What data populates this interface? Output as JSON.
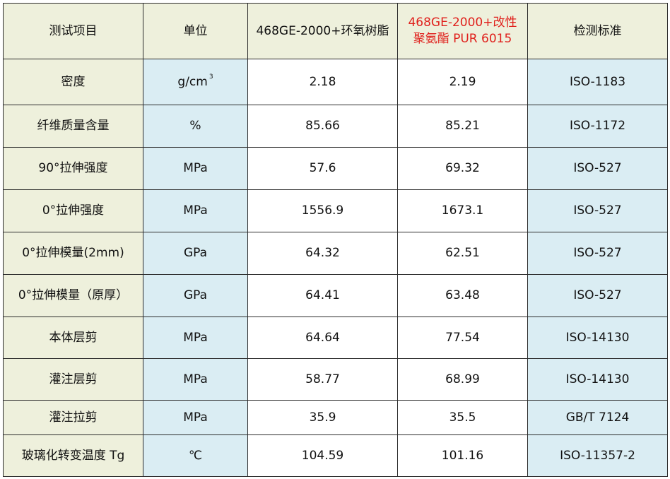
{
  "header": {
    "item": "测试项目",
    "unit": "单位",
    "col_a": "468GE-2000+环氧树脂",
    "col_b_line1": "468GE-2000+改性",
    "col_b_line2": "聚氨酯 PUR 6015",
    "standard": "检测标准"
  },
  "colors": {
    "label_bg": "#eef0dc",
    "blue_bg": "#daedf3",
    "highlight_text": "#e0201c"
  },
  "rows": [
    {
      "item": "密度",
      "unit": "g/cm",
      "unit_sup": "3",
      "a": "2.18",
      "b": "2.19",
      "std": "ISO-1183"
    },
    {
      "item": "纤维质量含量",
      "unit": "%",
      "a": "85.66",
      "b": "85.21",
      "std": "ISO-1172"
    },
    {
      "item": "90°拉伸强度",
      "unit": "MPa",
      "a": "57.6",
      "b": "69.32",
      "std": "ISO-527"
    },
    {
      "item": "0°拉伸强度",
      "unit": "MPa",
      "a": "1556.9",
      "b": "1673.1",
      "std": "ISO-527"
    },
    {
      "item": "0°拉伸模量(2mm)",
      "unit": "GPa",
      "a": "64.32",
      "b": "62.51",
      "std": "ISO-527"
    },
    {
      "item": "0°拉伸模量（原厚）",
      "unit": "GPa",
      "a": "64.41",
      "b": "63.48",
      "std": "ISO-527"
    },
    {
      "item": "本体层剪",
      "unit": "MPa",
      "a": "64.64",
      "b": "77.54",
      "std": "ISO-14130"
    },
    {
      "item": "灌注层剪",
      "unit": "MPa",
      "a": "58.77",
      "b": "68.99",
      "std": "ISO-14130"
    },
    {
      "item": "灌注拉剪",
      "unit": "MPa",
      "a": "35.9",
      "b": "35.5",
      "std": "GB/T 7124"
    },
    {
      "item": "玻璃化转变温度 Tg",
      "unit": "℃",
      "a": "104.59",
      "b": "101.16",
      "std": "ISO-11357-2"
    }
  ]
}
